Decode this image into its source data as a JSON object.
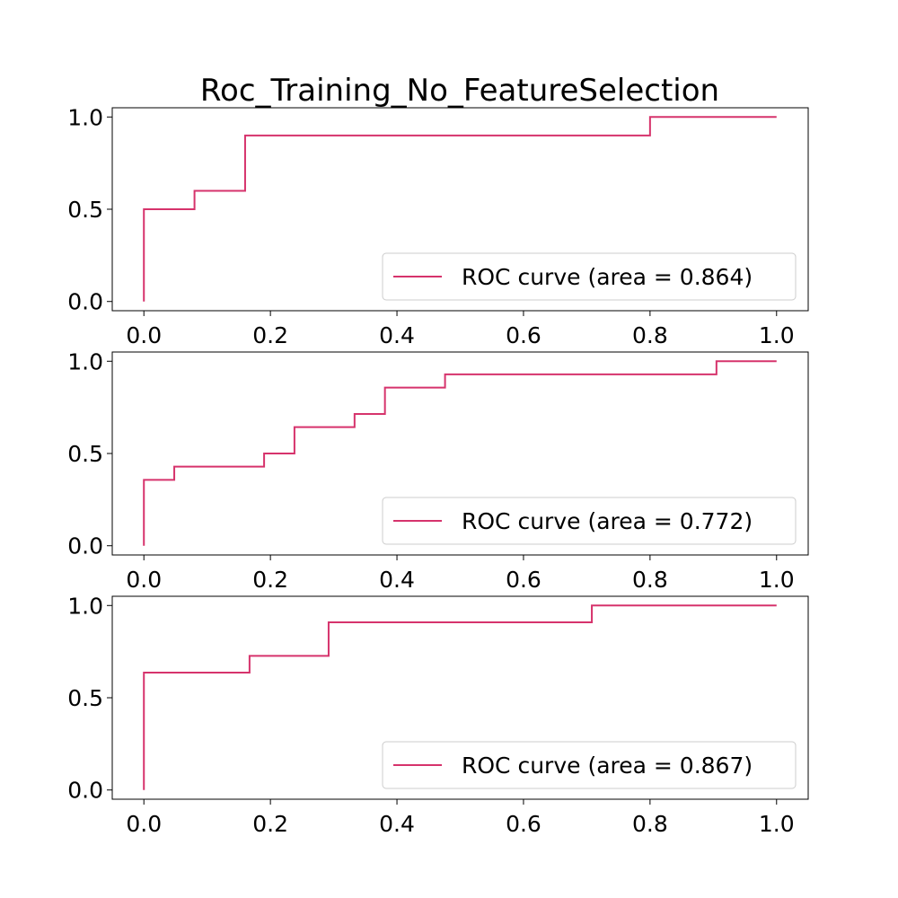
{
  "title": "Roc_Training_No_FeatureSelection",
  "colors": {
    "curve": "#d6336c",
    "axes": "#000000",
    "legend_border": "#cccccc"
  },
  "chart_data": [
    {
      "type": "line",
      "x": [
        0.0,
        0.0,
        0.08,
        0.08,
        0.16,
        0.16,
        0.8,
        0.8,
        1.0
      ],
      "y": [
        0.0,
        0.5,
        0.5,
        0.6,
        0.6,
        0.9,
        0.9,
        1.0,
        1.0
      ],
      "step": true,
      "series": [
        {
          "name": "ROC curve (area = 0.864)"
        }
      ],
      "xlim": [
        -0.05,
        1.05
      ],
      "ylim": [
        -0.05,
        1.05
      ],
      "xticks": [
        "0.0",
        "0.2",
        "0.4",
        "0.6",
        "0.8",
        "1.0"
      ],
      "yticks": [
        "0.0",
        "0.5",
        "1.0"
      ],
      "legend": "lower-right",
      "grid": false
    },
    {
      "type": "line",
      "x": [
        0.0,
        0.0,
        0.048,
        0.048,
        0.19,
        0.19,
        0.238,
        0.238,
        0.333,
        0.333,
        0.381,
        0.381,
        0.476,
        0.476,
        0.905,
        0.905,
        1.0
      ],
      "y": [
        0.0,
        0.357,
        0.357,
        0.429,
        0.429,
        0.5,
        0.5,
        0.643,
        0.643,
        0.714,
        0.714,
        0.857,
        0.857,
        0.929,
        0.929,
        1.0,
        1.0
      ],
      "step": true,
      "series": [
        {
          "name": "ROC curve (area = 0.772)"
        }
      ],
      "xlim": [
        -0.05,
        1.05
      ],
      "ylim": [
        -0.05,
        1.05
      ],
      "xticks": [
        "0.0",
        "0.2",
        "0.4",
        "0.6",
        "0.8",
        "1.0"
      ],
      "yticks": [
        "0.0",
        "0.5",
        "1.0"
      ],
      "legend": "lower-right",
      "grid": false
    },
    {
      "type": "line",
      "x": [
        0.0,
        0.0,
        0.167,
        0.167,
        0.292,
        0.292,
        0.708,
        0.708,
        1.0
      ],
      "y": [
        0.0,
        0.636,
        0.636,
        0.727,
        0.727,
        0.909,
        0.909,
        1.0,
        1.0
      ],
      "step": true,
      "series": [
        {
          "name": "ROC curve (area = 0.867)"
        }
      ],
      "xlim": [
        -0.05,
        1.05
      ],
      "ylim": [
        -0.05,
        1.05
      ],
      "xticks": [
        "0.0",
        "0.2",
        "0.4",
        "0.6",
        "0.8",
        "1.0"
      ],
      "yticks": [
        "0.0",
        "0.5",
        "1.0"
      ],
      "legend": "lower-right",
      "grid": false
    }
  ]
}
